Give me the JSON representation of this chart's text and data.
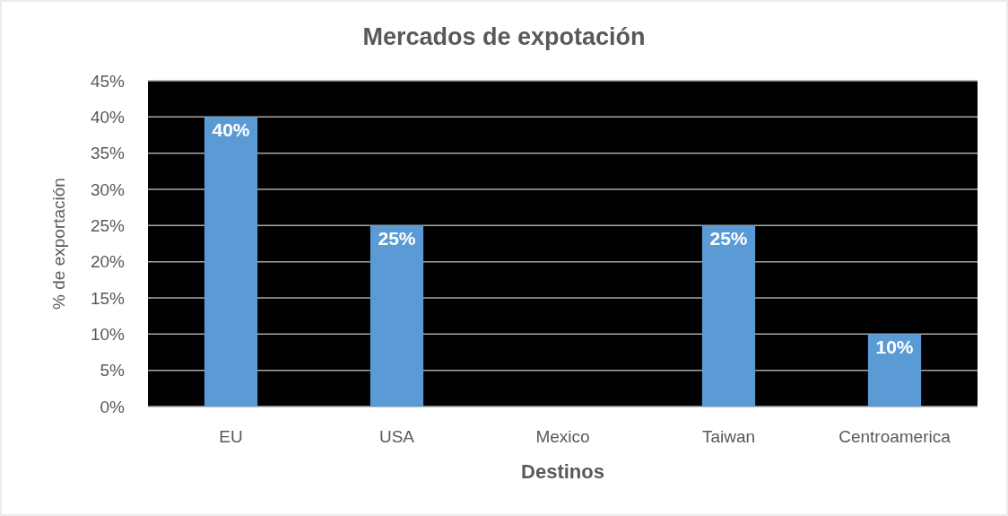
{
  "chart_data": {
    "type": "bar",
    "title": "Mercados de expotación",
    "xlabel": "Destinos",
    "ylabel": "% de exportación",
    "categories": [
      "EU",
      "USA",
      "Mexico",
      "Taiwan",
      "Centroamerica"
    ],
    "values": [
      40,
      25,
      0,
      25,
      10
    ],
    "value_labels": [
      "40%",
      "25%",
      null,
      "25%",
      "10%"
    ],
    "color": "#5b9bd5",
    "ylim": [
      0,
      45
    ],
    "yticks": [
      {
        "value": 0,
        "label": "0%"
      },
      {
        "value": 5,
        "label": "5%"
      },
      {
        "value": 10,
        "label": "10%"
      },
      {
        "value": 15,
        "label": "15%"
      },
      {
        "value": 20,
        "label": "20%"
      },
      {
        "value": 25,
        "label": "25%"
      },
      {
        "value": 30,
        "label": "30%"
      },
      {
        "value": 35,
        "label": "35%"
      },
      {
        "value": 40,
        "label": "40%"
      },
      {
        "value": 45,
        "label": "45%"
      }
    ],
    "grid": "y"
  }
}
